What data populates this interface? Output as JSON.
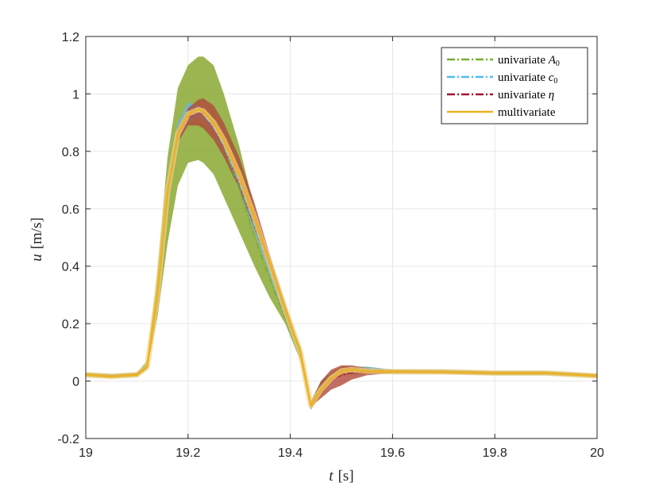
{
  "chart_data": {
    "type": "line",
    "title": "",
    "xlabel_var": "t",
    "xlabel_unit": "[s]",
    "ylabel_var": "u",
    "ylabel_unit": "[m/s]",
    "xlim": [
      19,
      20
    ],
    "ylim": [
      -0.2,
      1.2
    ],
    "xticks": [
      19,
      19.2,
      19.4,
      19.6,
      19.8,
      20
    ],
    "xtick_labels": [
      "19",
      "19.2",
      "19.4",
      "19.6",
      "19.8",
      "20"
    ],
    "yticks": [
      -0.2,
      0,
      0.2,
      0.4,
      0.6,
      0.8,
      1,
      1.2
    ],
    "ytick_labels": [
      "-0.2",
      "0",
      "0.2",
      "0.4",
      "0.6",
      "0.8",
      "1",
      "1.2"
    ],
    "grid": true,
    "legend_position": "top-right",
    "series": [
      {
        "name": "univariate A0",
        "legend_label": "univariate ",
        "legend_math": "A",
        "legend_sub": "0",
        "color": "#77ac30",
        "band_color": "#8aa832",
        "band_opacity": 0.85,
        "x": [
          19.0,
          19.05,
          19.1,
          19.12,
          19.14,
          19.16,
          19.18,
          19.2,
          19.22,
          19.23,
          19.25,
          19.27,
          19.3,
          19.33,
          19.36,
          19.39,
          19.42,
          19.44,
          19.46,
          19.48,
          19.5,
          19.55,
          19.6,
          19.7,
          19.8,
          19.9,
          20.0
        ],
        "upper": [
          0.03,
          0.025,
          0.03,
          0.07,
          0.38,
          0.78,
          1.02,
          1.1,
          1.13,
          1.13,
          1.1,
          1.0,
          0.82,
          0.6,
          0.42,
          0.24,
          0.12,
          -0.07,
          0.0,
          0.03,
          0.05,
          0.05,
          0.04,
          0.04,
          0.035,
          0.035,
          0.025
        ],
        "lower": [
          0.015,
          0.01,
          0.015,
          0.04,
          0.22,
          0.48,
          0.68,
          0.76,
          0.77,
          0.76,
          0.72,
          0.64,
          0.52,
          0.4,
          0.29,
          0.2,
          0.07,
          -0.1,
          -0.05,
          0.0,
          0.02,
          0.025,
          0.025,
          0.025,
          0.02,
          0.02,
          0.012
        ]
      },
      {
        "name": "univariate c0",
        "legend_label": "univariate ",
        "legend_math": "c",
        "legend_sub": "0",
        "color": "#4dbeee",
        "band_color": "#6fb7d8",
        "band_opacity": 0.85,
        "x": [
          19.0,
          19.05,
          19.1,
          19.12,
          19.14,
          19.16,
          19.18,
          19.2,
          19.22,
          19.23,
          19.25,
          19.27,
          19.3,
          19.33,
          19.36,
          19.39,
          19.42,
          19.44,
          19.46,
          19.48,
          19.5,
          19.55,
          19.6,
          19.7,
          19.8,
          19.9,
          20.0
        ],
        "upper": [
          0.028,
          0.022,
          0.028,
          0.06,
          0.33,
          0.7,
          0.9,
          0.97,
          0.96,
          0.95,
          0.9,
          0.84,
          0.71,
          0.56,
          0.41,
          0.26,
          0.1,
          -0.07,
          -0.01,
          0.025,
          0.045,
          0.05,
          0.04,
          0.038,
          0.033,
          0.033,
          0.024
        ],
        "lower": [
          0.018,
          0.012,
          0.018,
          0.045,
          0.28,
          0.62,
          0.83,
          0.9,
          0.92,
          0.91,
          0.87,
          0.8,
          0.67,
          0.52,
          0.37,
          0.22,
          0.08,
          -0.09,
          -0.04,
          0.005,
          0.03,
          0.035,
          0.03,
          0.028,
          0.023,
          0.023,
          0.014
        ]
      },
      {
        "name": "univariate η",
        "legend_label": "univariate ",
        "legend_math": "η",
        "legend_sub": "",
        "color": "#a2142f",
        "band_color": "#b04a3a",
        "band_opacity": 0.8,
        "x": [
          19.0,
          19.05,
          19.1,
          19.12,
          19.14,
          19.16,
          19.18,
          19.2,
          19.22,
          19.23,
          19.25,
          19.27,
          19.3,
          19.33,
          19.36,
          19.39,
          19.42,
          19.44,
          19.46,
          19.48,
          19.5,
          19.52,
          19.55,
          19.6,
          19.7,
          19.8,
          19.9,
          20.0
        ],
        "upper": [
          0.027,
          0.021,
          0.027,
          0.058,
          0.32,
          0.68,
          0.88,
          0.95,
          0.98,
          0.985,
          0.96,
          0.9,
          0.78,
          0.62,
          0.44,
          0.27,
          0.11,
          -0.075,
          0.0,
          0.04,
          0.055,
          0.055,
          0.045,
          0.038,
          0.036,
          0.032,
          0.032,
          0.023
        ],
        "lower": [
          0.019,
          0.013,
          0.019,
          0.046,
          0.29,
          0.63,
          0.83,
          0.89,
          0.89,
          0.88,
          0.84,
          0.78,
          0.67,
          0.53,
          0.39,
          0.23,
          0.09,
          -0.09,
          -0.06,
          -0.03,
          -0.015,
          0.005,
          0.02,
          0.028,
          0.027,
          0.024,
          0.024,
          0.015
        ]
      },
      {
        "name": "multivariate",
        "legend_label": "multivariate",
        "legend_math": "",
        "legend_sub": "",
        "color": "#edb120",
        "x": [
          19.0,
          19.05,
          19.1,
          19.12,
          19.14,
          19.16,
          19.18,
          19.2,
          19.22,
          19.23,
          19.25,
          19.27,
          19.3,
          19.33,
          19.36,
          19.39,
          19.42,
          19.44,
          19.46,
          19.48,
          19.5,
          19.52,
          19.55,
          19.6,
          19.7,
          19.8,
          19.9,
          20.0
        ],
        "values": [
          0.022,
          0.016,
          0.022,
          0.05,
          0.3,
          0.66,
          0.86,
          0.93,
          0.945,
          0.94,
          0.9,
          0.84,
          0.72,
          0.57,
          0.41,
          0.25,
          0.1,
          -0.085,
          -0.03,
          0.01,
          0.035,
          0.04,
          0.035,
          0.033,
          0.032,
          0.028,
          0.028,
          0.018
        ]
      }
    ]
  }
}
